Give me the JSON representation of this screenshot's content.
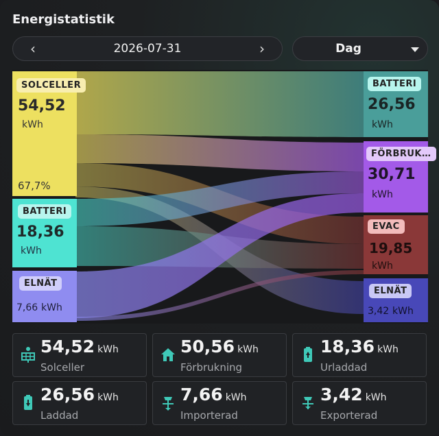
{
  "header": {
    "title": "Energistatistik"
  },
  "date_nav": {
    "prev_icon": "‹",
    "date": "2026-07-31",
    "next_icon": "›"
  },
  "period_select": {
    "value": "Dag"
  },
  "sankey": {
    "sources": {
      "solar": {
        "label": "SOLCELLER",
        "value": "54,52",
        "unit": "kWh",
        "percent": "67,7%",
        "color": "#ede060"
      },
      "battery": {
        "label": "BATTERI",
        "value": "18,36",
        "unit": "kWh",
        "color": "#4ee3d2"
      },
      "grid": {
        "label": "ELNÄT",
        "value": "7,66",
        "unit": "kWh",
        "color": "#8f8cf0"
      }
    },
    "targets": {
      "battery": {
        "label": "BATTERI",
        "value": "26,56",
        "unit": "kWh",
        "color": "#4a9e9a"
      },
      "consumption": {
        "label": "FÖRBRUK…",
        "value": "30,71",
        "unit": "kWh",
        "color": "#a35ae8"
      },
      "evac": {
        "label": "EVAC",
        "value": "19,85",
        "unit": "kWh",
        "color": "#8a3838"
      },
      "grid": {
        "label": "ELNÄT",
        "value": "3,42",
        "unit": "kWh",
        "color": "#4848b8"
      }
    }
  },
  "stats": [
    {
      "icon": "solar-panel-icon",
      "value": "54,52",
      "unit": "kWh",
      "label": "Solceller"
    },
    {
      "icon": "home-icon",
      "value": "50,56",
      "unit": "kWh",
      "label": "Förbrukning"
    },
    {
      "icon": "battery-discharge-icon",
      "value": "18,36",
      "unit": "kWh",
      "label": "Urladdad"
    },
    {
      "icon": "battery-charge-icon",
      "value": "26,56",
      "unit": "kWh",
      "label": "Laddad"
    },
    {
      "icon": "grid-import-icon",
      "value": "7,66",
      "unit": "kWh",
      "label": "Importerad"
    },
    {
      "icon": "grid-export-icon",
      "value": "3,42",
      "unit": "kWh",
      "label": "Exporterad"
    }
  ],
  "colors": {
    "accent": "#3fc9b8"
  }
}
